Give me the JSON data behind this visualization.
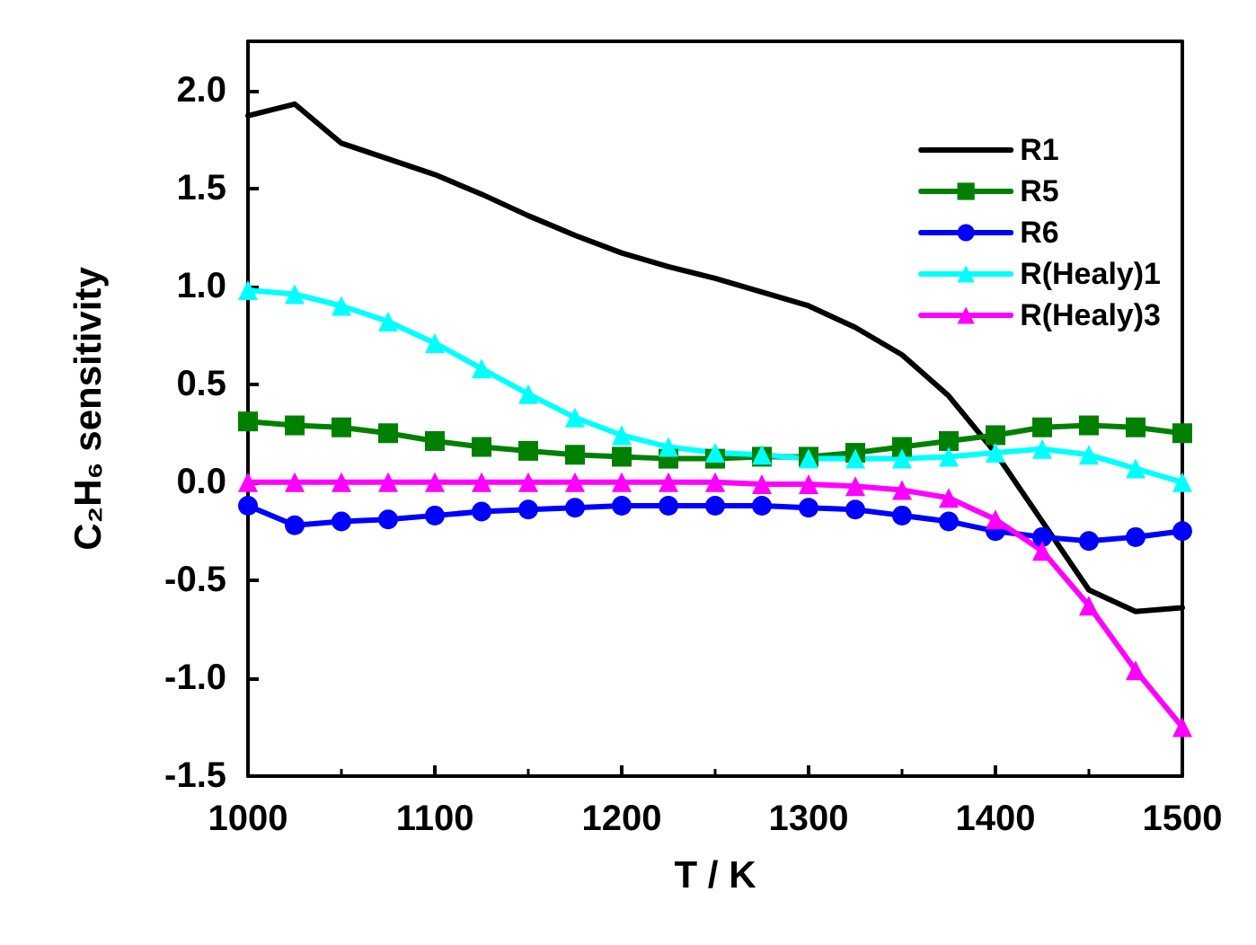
{
  "chart_data": {
    "type": "line",
    "xlabel": "T / K",
    "ylabel": "C₂H₆ sensitivity",
    "x": [
      1000,
      1025,
      1050,
      1075,
      1100,
      1125,
      1150,
      1175,
      1200,
      1225,
      1250,
      1275,
      1300,
      1325,
      1350,
      1375,
      1400,
      1425,
      1450,
      1475,
      1500
    ],
    "xlim": [
      1000,
      1500
    ],
    "xticks": [
      1000,
      1100,
      1200,
      1300,
      1400,
      1500
    ],
    "ylim": [
      -1.5,
      2.25
    ],
    "yticks": [
      {
        "value": -1.5,
        "label": "-1.5"
      },
      {
        "value": -1,
        "label": "-1.0"
      },
      {
        "value": -0.5,
        "label": "-0.5"
      },
      {
        "value": 0,
        "label": "0.0"
      },
      {
        "value": 0.5,
        "label": "0.5"
      },
      {
        "value": 1,
        "label": "1.0"
      },
      {
        "value": 1.5,
        "label": "1.5"
      },
      {
        "value": 2,
        "label": "2.0"
      }
    ],
    "grid": false,
    "legend": "top right",
    "line_style": "solid",
    "series": [
      {
        "name": "R1",
        "color": "#000000",
        "marker": "none",
        "values": [
          1.87,
          1.93,
          1.73,
          1.65,
          1.57,
          1.47,
          1.36,
          1.26,
          1.17,
          1.1,
          1.04,
          0.97,
          0.9,
          0.79,
          0.65,
          0.44,
          0.15,
          -0.2,
          -0.55,
          -0.66,
          -0.64
        ]
      },
      {
        "name": "R5",
        "color": "#008000",
        "marker": "square",
        "values": [
          0.31,
          0.29,
          0.28,
          0.25,
          0.21,
          0.18,
          0.16,
          0.14,
          0.13,
          0.12,
          0.12,
          0.13,
          0.13,
          0.15,
          0.18,
          0.21,
          0.24,
          0.28,
          0.29,
          0.28,
          0.25
        ]
      },
      {
        "name": "R6",
        "color": "#0000ff",
        "marker": "circle",
        "values": [
          -0.12,
          -0.22,
          -0.2,
          -0.19,
          -0.17,
          -0.15,
          -0.14,
          -0.13,
          -0.12,
          -0.12,
          -0.12,
          -0.12,
          -0.13,
          -0.14,
          -0.17,
          -0.2,
          -0.25,
          -0.28,
          -0.3,
          -0.28,
          -0.25
        ]
      },
      {
        "name": "R(Healy)1",
        "color": "#00ffff",
        "marker": "triangle",
        "values": [
          0.98,
          0.96,
          0.9,
          0.82,
          0.71,
          0.58,
          0.45,
          0.33,
          0.24,
          0.18,
          0.15,
          0.14,
          0.12,
          0.12,
          0.12,
          0.13,
          0.15,
          0.17,
          0.14,
          0.07,
          0.0
        ]
      },
      {
        "name": "R(Healy)3",
        "color": "#ff00ff",
        "marker": "triangle",
        "values": [
          0.0,
          0.0,
          0.0,
          0.0,
          0.0,
          0.0,
          0.0,
          0.0,
          0.0,
          0.0,
          0.0,
          -0.01,
          -0.01,
          -0.02,
          -0.04,
          -0.08,
          -0.19,
          -0.35,
          -0.63,
          -0.96,
          -1.25
        ]
      }
    ]
  }
}
